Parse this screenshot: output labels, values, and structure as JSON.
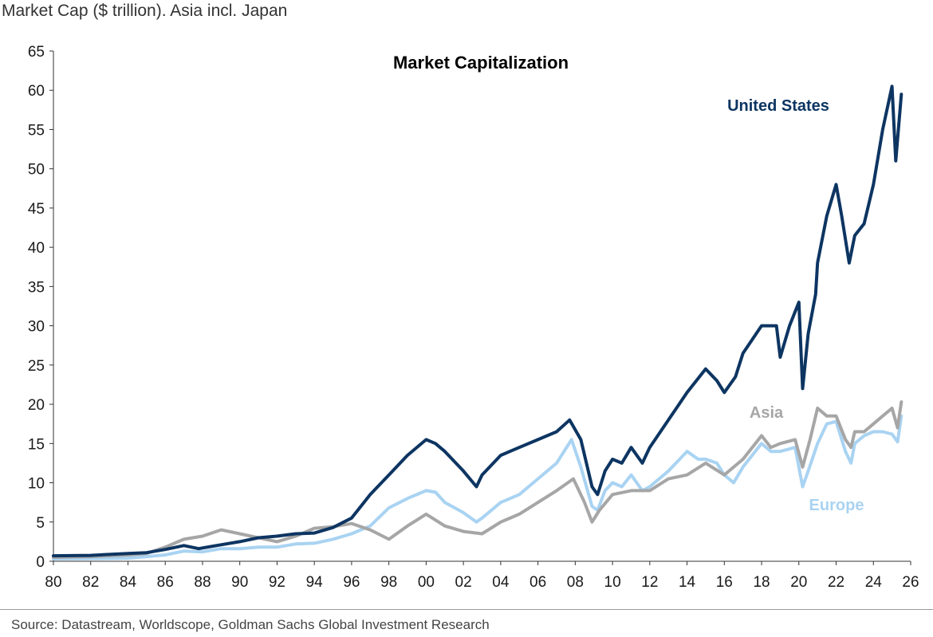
{
  "subtitle": "Market Cap ($ trillion). Asia incl. Japan",
  "source": "Source: Datastream, Worldscope, Goldman Sachs Global Investment Research",
  "chart_data": {
    "type": "line",
    "title": "Market Capitalization",
    "xlabel": "",
    "ylabel": "",
    "xlim": [
      1980,
      2026
    ],
    "ylim": [
      0,
      65
    ],
    "x_ticks": [
      "80",
      "82",
      "84",
      "86",
      "88",
      "90",
      "92",
      "94",
      "96",
      "98",
      "00",
      "02",
      "04",
      "06",
      "08",
      "10",
      "12",
      "14",
      "16",
      "18",
      "20",
      "22",
      "24",
      "26"
    ],
    "y_ticks": [
      0,
      5,
      10,
      15,
      20,
      25,
      30,
      35,
      40,
      45,
      50,
      55,
      60,
      65
    ],
    "grid": false,
    "legend": "inline labels",
    "series": [
      {
        "name": "Europe",
        "color": "#a9d3f2",
        "points": [
          [
            1980,
            0.3
          ],
          [
            1982,
            0.35
          ],
          [
            1984,
            0.4
          ],
          [
            1986,
            0.8
          ],
          [
            1987,
            1.3
          ],
          [
            1988,
            1.2
          ],
          [
            1989,
            1.6
          ],
          [
            1990,
            1.6
          ],
          [
            1991,
            1.8
          ],
          [
            1992,
            1.8
          ],
          [
            1993,
            2.2
          ],
          [
            1994,
            2.3
          ],
          [
            1995,
            2.8
          ],
          [
            1996,
            3.5
          ],
          [
            1997,
            4.5
          ],
          [
            1998,
            6.8
          ],
          [
            1999,
            8.0
          ],
          [
            2000,
            9.0
          ],
          [
            2000.5,
            8.8
          ],
          [
            2001,
            7.5
          ],
          [
            2002,
            6.2
          ],
          [
            2002.7,
            5.0
          ],
          [
            2003,
            5.5
          ],
          [
            2004,
            7.5
          ],
          [
            2005,
            8.5
          ],
          [
            2006,
            10.5
          ],
          [
            2007,
            12.5
          ],
          [
            2007.8,
            15.5
          ],
          [
            2008.3,
            12.0
          ],
          [
            2008.9,
            7.0
          ],
          [
            2009.2,
            6.5
          ],
          [
            2009.6,
            9.0
          ],
          [
            2010,
            10.0
          ],
          [
            2010.5,
            9.5
          ],
          [
            2011,
            11.0
          ],
          [
            2011.6,
            9.0
          ],
          [
            2012,
            9.5
          ],
          [
            2013,
            11.5
          ],
          [
            2014,
            14.0
          ],
          [
            2014.6,
            13.0
          ],
          [
            2015,
            13.0
          ],
          [
            2015.6,
            12.5
          ],
          [
            2016,
            11.0
          ],
          [
            2016.5,
            10.0
          ],
          [
            2017,
            12.0
          ],
          [
            2018,
            15.0
          ],
          [
            2018.5,
            14.0
          ],
          [
            2019,
            14.0
          ],
          [
            2019.8,
            14.5
          ],
          [
            2020.2,
            9.5
          ],
          [
            2020.5,
            11.5
          ],
          [
            2021,
            15.0
          ],
          [
            2021.5,
            17.5
          ],
          [
            2022,
            17.8
          ],
          [
            2022.5,
            14.0
          ],
          [
            2022.8,
            12.5
          ],
          [
            2023,
            15.0
          ],
          [
            2023.5,
            16.0
          ],
          [
            2024,
            16.5
          ],
          [
            2024.5,
            16.5
          ],
          [
            2025,
            16.2
          ],
          [
            2025.3,
            15.2
          ],
          [
            2025.5,
            18.5
          ]
        ]
      },
      {
        "name": "Asia",
        "color": "#a6a6a6",
        "points": [
          [
            1980,
            0.5
          ],
          [
            1982,
            0.6
          ],
          [
            1984,
            0.8
          ],
          [
            1985,
            1.0
          ],
          [
            1986,
            1.8
          ],
          [
            1987,
            2.8
          ],
          [
            1988,
            3.2
          ],
          [
            1989,
            4.0
          ],
          [
            1990,
            3.5
          ],
          [
            1991,
            3.0
          ],
          [
            1992,
            2.5
          ],
          [
            1993,
            3.2
          ],
          [
            1994,
            4.2
          ],
          [
            1995,
            4.4
          ],
          [
            1996,
            4.8
          ],
          [
            1997,
            4.0
          ],
          [
            1998,
            2.8
          ],
          [
            1999,
            4.5
          ],
          [
            2000,
            6.0
          ],
          [
            2001,
            4.5
          ],
          [
            2002,
            3.8
          ],
          [
            2003,
            3.5
          ],
          [
            2004,
            5.0
          ],
          [
            2005,
            6.0
          ],
          [
            2006,
            7.5
          ],
          [
            2007,
            9.0
          ],
          [
            2007.9,
            10.5
          ],
          [
            2008.5,
            7.5
          ],
          [
            2008.9,
            5.0
          ],
          [
            2009.3,
            6.5
          ],
          [
            2010,
            8.5
          ],
          [
            2011,
            9.0
          ],
          [
            2012,
            9.0
          ],
          [
            2013,
            10.5
          ],
          [
            2014,
            11.0
          ],
          [
            2015,
            12.5
          ],
          [
            2016,
            11.0
          ],
          [
            2017,
            13.0
          ],
          [
            2018,
            16.0
          ],
          [
            2018.5,
            14.5
          ],
          [
            2019,
            15.0
          ],
          [
            2019.8,
            15.5
          ],
          [
            2020.2,
            12.0
          ],
          [
            2020.6,
            15.5
          ],
          [
            2021,
            19.5
          ],
          [
            2021.5,
            18.5
          ],
          [
            2022,
            18.5
          ],
          [
            2022.5,
            15.5
          ],
          [
            2022.8,
            14.5
          ],
          [
            2023,
            16.5
          ],
          [
            2023.5,
            16.5
          ],
          [
            2024,
            17.5
          ],
          [
            2024.5,
            18.5
          ],
          [
            2025,
            19.5
          ],
          [
            2025.3,
            17.0
          ],
          [
            2025.5,
            20.3
          ]
        ]
      },
      {
        "name": "United States",
        "color": "#0d3562",
        "points": [
          [
            1980,
            0.7
          ],
          [
            1982,
            0.75
          ],
          [
            1984,
            1.0
          ],
          [
            1985,
            1.1
          ],
          [
            1986,
            1.5
          ],
          [
            1987,
            2.0
          ],
          [
            1987.8,
            1.6
          ],
          [
            1988,
            1.7
          ],
          [
            1989,
            2.1
          ],
          [
            1990,
            2.5
          ],
          [
            1991,
            3.0
          ],
          [
            1992,
            3.2
          ],
          [
            1993,
            3.5
          ],
          [
            1994,
            3.6
          ],
          [
            1995,
            4.3
          ],
          [
            1996,
            5.5
          ],
          [
            1997,
            8.5
          ],
          [
            1998,
            11.0
          ],
          [
            1999,
            13.5
          ],
          [
            2000,
            15.5
          ],
          [
            2000.5,
            15.0
          ],
          [
            2001,
            14.0
          ],
          [
            2002,
            11.5
          ],
          [
            2002.7,
            9.5
          ],
          [
            2003,
            11.0
          ],
          [
            2004,
            13.5
          ],
          [
            2005,
            14.5
          ],
          [
            2006,
            15.5
          ],
          [
            2007,
            16.5
          ],
          [
            2007.7,
            18.0
          ],
          [
            2008.3,
            15.5
          ],
          [
            2008.9,
            9.5
          ],
          [
            2009.2,
            8.5
          ],
          [
            2009.6,
            11.5
          ],
          [
            2010,
            13.0
          ],
          [
            2010.5,
            12.5
          ],
          [
            2011,
            14.5
          ],
          [
            2011.6,
            12.5
          ],
          [
            2012,
            14.5
          ],
          [
            2013,
            18.0
          ],
          [
            2014,
            21.5
          ],
          [
            2015,
            24.5
          ],
          [
            2015.6,
            23.0
          ],
          [
            2016,
            21.5
          ],
          [
            2016.6,
            23.5
          ],
          [
            2017,
            26.5
          ],
          [
            2018,
            30.0
          ],
          [
            2018.8,
            30.0
          ],
          [
            2019,
            26.0
          ],
          [
            2019.5,
            30.0
          ],
          [
            2020,
            33.0
          ],
          [
            2020.2,
            22.0
          ],
          [
            2020.5,
            29.0
          ],
          [
            2020.9,
            34.0
          ],
          [
            2021,
            38.0
          ],
          [
            2021.5,
            44.0
          ],
          [
            2022,
            48.0
          ],
          [
            2022.3,
            44.0
          ],
          [
            2022.7,
            38.0
          ],
          [
            2023,
            41.5
          ],
          [
            2023.5,
            43.0
          ],
          [
            2024,
            48.0
          ],
          [
            2024.5,
            55.0
          ],
          [
            2025,
            60.5
          ],
          [
            2025.2,
            51.0
          ],
          [
            2025.5,
            59.5
          ]
        ]
      }
    ],
    "annotations": [
      {
        "text": "United States",
        "color": "#0d3562"
      },
      {
        "text": "Asia",
        "color": "#a6a6a6"
      },
      {
        "text": "Europe",
        "color": "#a9d3f2"
      }
    ]
  }
}
